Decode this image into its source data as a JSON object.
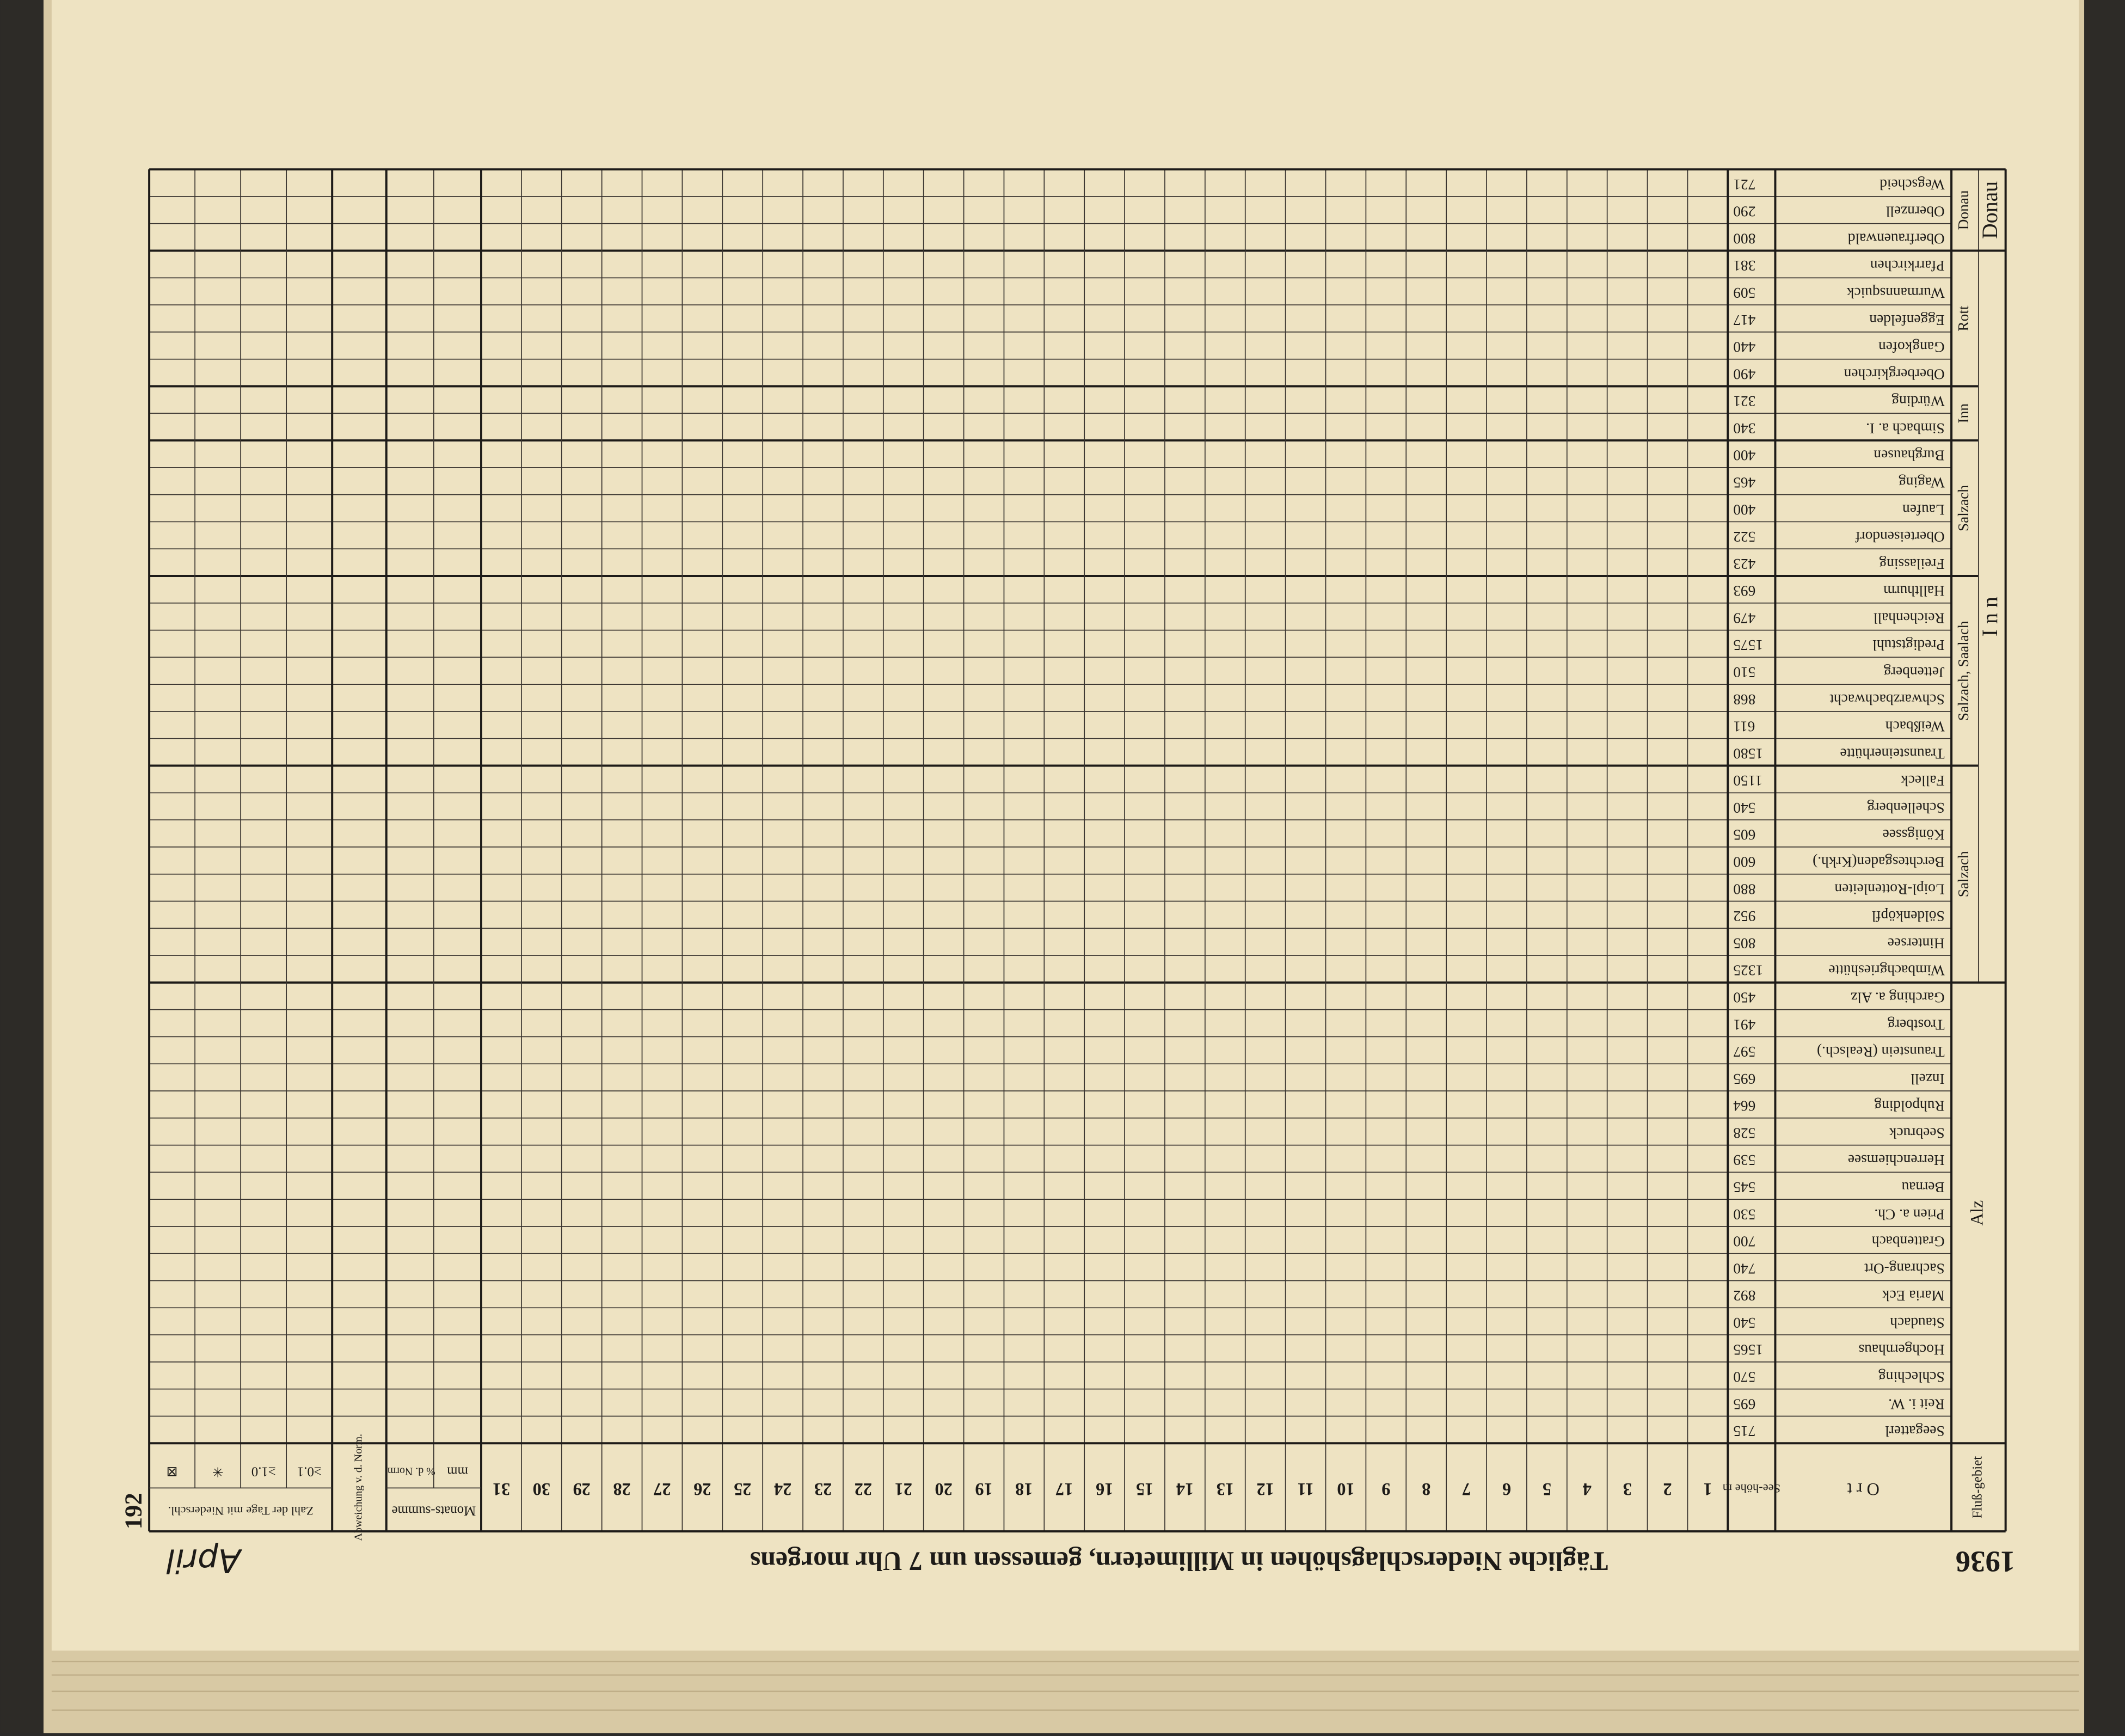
{
  "header": {
    "year": "1936",
    "title": "Tägliche Niederschlagshöhen in Millimetern, gemessen um 7 Uhr morgens",
    "page": "192",
    "month": "April"
  },
  "table": {
    "columns": {
      "river": "Fluß-gebiet",
      "place": "O r t",
      "elevation": "See-höhe m",
      "days": [
        1,
        2,
        3,
        4,
        5,
        6,
        7,
        8,
        9,
        10,
        11,
        12,
        13,
        14,
        15,
        16,
        17,
        18,
        19,
        20,
        21,
        22,
        23,
        24,
        25,
        26,
        27,
        28,
        29,
        30,
        31
      ],
      "sum": "Monats-summe",
      "sum_unit": "mm",
      "percent": "% d. Norm.",
      "deviation": "Abweichung v. d. Norm.",
      "rain_days": "Zahl der Tage mit Niederschl.",
      "thresholds": [
        "≥0.1",
        "≥1.0",
        "✳",
        "⊠"
      ]
    },
    "basins": [
      {
        "label": "Alz",
        "groups": [
          {
            "stations": [
              {
                "place": "Seegatterl",
                "elevation": 715
              },
              {
                "place": "Reit i. W.",
                "elevation": 695
              },
              {
                "place": "Schleching",
                "elevation": 570
              },
              {
                "place": "Hochgernhaus",
                "elevation": 1565
              },
              {
                "place": "Staudach",
                "elevation": 540
              },
              {
                "place": "Maria Eck",
                "elevation": 892
              },
              {
                "place": "Sachrang-Ort",
                "elevation": 740
              },
              {
                "place": "Grattenbach",
                "elevation": 700
              },
              {
                "place": "Prien a. Ch.",
                "elevation": 530
              },
              {
                "place": "Bernau",
                "elevation": 545
              },
              {
                "place": "Herrenchiemsee",
                "elevation": 539
              },
              {
                "place": "Seebruck",
                "elevation": 528
              },
              {
                "place": "Ruhpolding",
                "elevation": 664
              },
              {
                "place": "Inzell",
                "elevation": 695
              },
              {
                "place": "Traunstein (Realsch.)",
                "elevation": 597
              },
              {
                "place": "Trostberg",
                "elevation": 491
              },
              {
                "place": "Garching a. Alz",
                "elevation": 450
              }
            ]
          }
        ]
      },
      {
        "label": "I n n",
        "groups": [
          {
            "label": "Salzach",
            "stations": [
              {
                "place": "Wimbachgrieshütte",
                "elevation": 1325
              },
              {
                "place": "Hintersee",
                "elevation": 805
              },
              {
                "place": "Söldenköpfl",
                "elevation": 952
              },
              {
                "place": "Loipl-Rottenleiten",
                "elevation": 880
              },
              {
                "place": "Berchtesgaden(Krkh.)",
                "elevation": 600
              },
              {
                "place": "Königssee",
                "elevation": 605
              },
              {
                "place": "Schellenberg",
                "elevation": 540
              },
              {
                "place": "Falleck",
                "elevation": 1150
              }
            ]
          },
          {
            "label": "Salzach, Saalach",
            "stations": [
              {
                "place": "Traunsteinerhütte",
                "elevation": 1580
              },
              {
                "place": "Weißbach",
                "elevation": 611
              },
              {
                "place": "Schwarzbachwacht",
                "elevation": 868
              },
              {
                "place": "Jettenberg",
                "elevation": 510
              },
              {
                "place": "Predigtstuhl",
                "elevation": 1575
              },
              {
                "place": "Reichenhall",
                "elevation": 479
              },
              {
                "place": "Hallthurm",
                "elevation": 693
              }
            ]
          },
          {
            "label": "Salzach",
            "stations": [
              {
                "place": "Freilassing",
                "elevation": 423
              },
              {
                "place": "Oberteisendorf",
                "elevation": 522
              },
              {
                "place": "Laufen",
                "elevation": 400
              },
              {
                "place": "Waging",
                "elevation": 465
              },
              {
                "place": "Burghausen",
                "elevation": 400
              }
            ]
          },
          {
            "label": "Inn",
            "stations": [
              {
                "place": "Simbach a. I.",
                "elevation": 340
              },
              {
                "place": "Würding",
                "elevation": 321
              }
            ]
          },
          {
            "label": "Rott",
            "stations": [
              {
                "place": "Oberbergkirchen",
                "elevation": 490
              },
              {
                "place": "Gangkofen",
                "elevation": 440
              },
              {
                "place": "Eggenfelden",
                "elevation": 417
              },
              {
                "place": "Wurmannsquick",
                "elevation": 509
              },
              {
                "place": "Pfarrkirchen",
                "elevation": 381
              }
            ]
          }
        ]
      },
      {
        "label": "Donau",
        "groups": [
          {
            "label": "Donau",
            "stations": [
              {
                "place": "Oberfrauenwald",
                "elevation": 800
              },
              {
                "place": "Obernzell",
                "elevation": 290
              },
              {
                "place": "Wegscheid",
                "elevation": 721
              }
            ]
          }
        ]
      }
    ]
  }
}
